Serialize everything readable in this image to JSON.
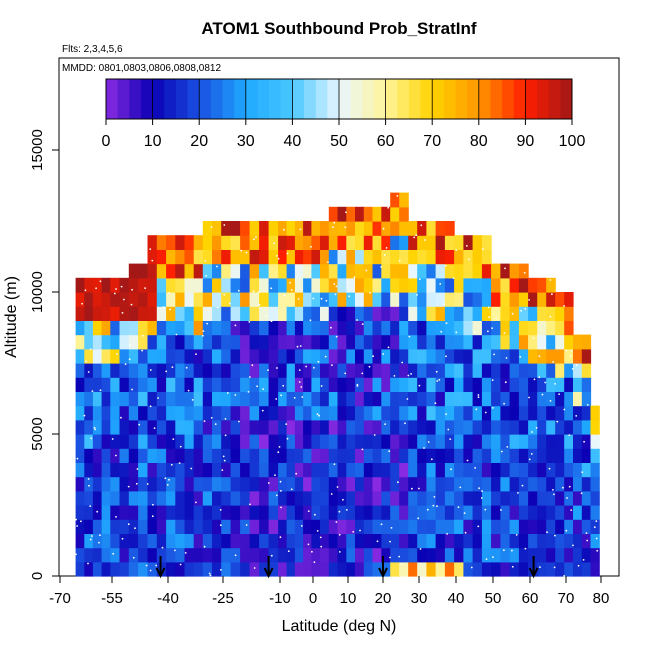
{
  "chart_data": {
    "type": "heatmap",
    "title": "ATOM1 Southbound Prob_StratInf",
    "annotations": [
      "Flts: 2,3,4,5,6",
      "MMDD: 0801,0803,0806,0808,0812"
    ],
    "xlabel": "Latitude (deg N)",
    "ylabel": "Altitude (m)",
    "xlim": [
      -70,
      85
    ],
    "ylim": [
      0,
      17500
    ],
    "x_ticks": [
      -70,
      -55,
      -40,
      -25,
      -10,
      0,
      10,
      20,
      30,
      40,
      50,
      60,
      70,
      80
    ],
    "y_ticks": [
      0,
      5000,
      10000,
      15000
    ],
    "colorbar": {
      "label_values": [
        0,
        10,
        20,
        30,
        40,
        50,
        60,
        70,
        80,
        90,
        100
      ],
      "range": [
        0,
        100
      ],
      "placement": "top inside plot"
    },
    "colors": {
      "c0": "#8a2be2",
      "c10": "#0a00b4",
      "c20": "#1a4fe0",
      "c30": "#1fa8ff",
      "c40": "#49c8ff",
      "c50": "#e8f6ff",
      "c60": "#fff59a",
      "c70": "#ffd400",
      "c80": "#ff9600",
      "c90": "#ff1e00",
      "c100": "#a01818"
    },
    "profile_arrows_lat": [
      -42,
      -13,
      20,
      61
    ],
    "grid": false
  }
}
